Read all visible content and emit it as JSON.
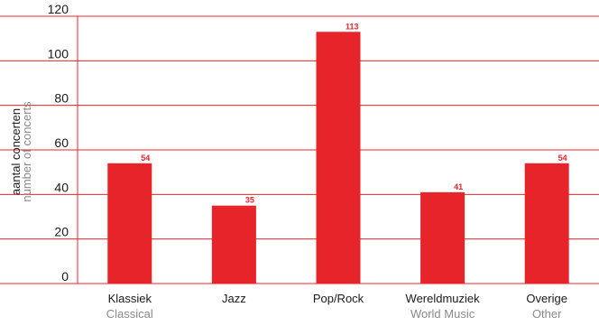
{
  "chart_data": {
    "type": "bar",
    "categories": [
      "Klassiek",
      "Jazz",
      "Pop/Rock",
      "Wereldmuziek",
      "Overige"
    ],
    "categories_en": [
      "Classical",
      "",
      "",
      "World Music",
      "Other"
    ],
    "values": [
      54,
      35,
      113,
      41,
      54
    ],
    "ylabel": "aantal concerten",
    "ylabel_en": "number of concerts",
    "ylim": [
      0,
      120
    ],
    "yticks": [
      0,
      20,
      40,
      60,
      80,
      100,
      120
    ],
    "grid": true,
    "bar_color": "#e8242b",
    "grid_color": "#e8242b"
  }
}
